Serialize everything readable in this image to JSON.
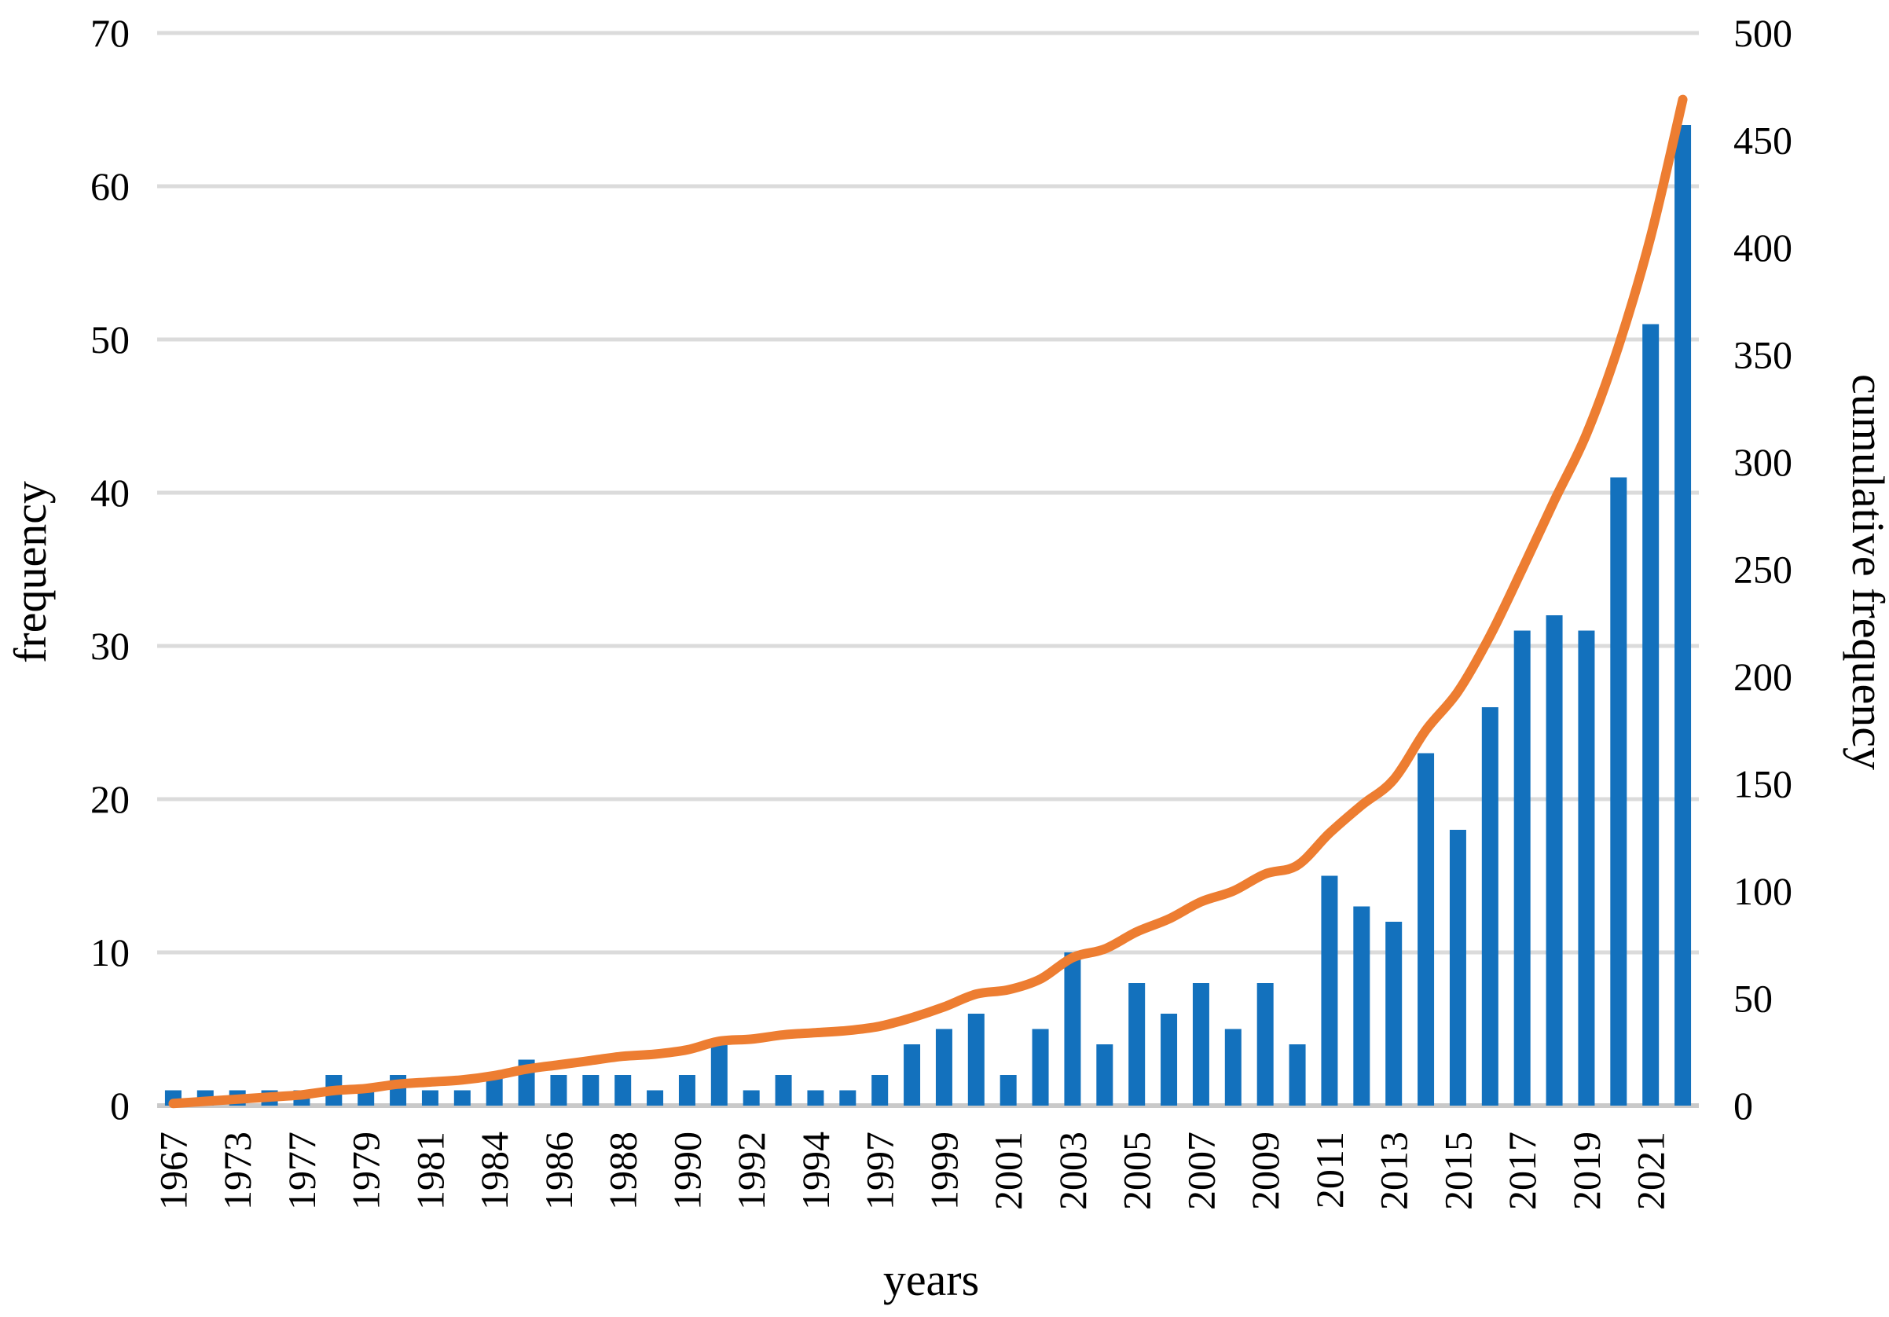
{
  "chart_data": {
    "type": "combo-bar-line",
    "title": "",
    "x_axis": {
      "title": "years",
      "tick_labels": [
        "1967",
        "1973",
        "1977",
        "1979",
        "1981",
        "1984",
        "1986",
        "1988",
        "1990",
        "1992",
        "1994",
        "1997",
        "1999",
        "2001",
        "2003",
        "2005",
        "2007",
        "2009",
        "2011",
        "2013",
        "2015",
        "2017",
        "2019",
        "2021"
      ],
      "tick_every_n_bars": 2,
      "total_bars": 48
    },
    "left_axis": {
      "title": "frequency",
      "min": 0,
      "max": 70,
      "ticks": [
        0,
        10,
        20,
        30,
        40,
        50,
        60,
        70
      ]
    },
    "right_axis": {
      "title": "cumulative frequency",
      "min": 0,
      "max": 500,
      "ticks": [
        0,
        50,
        100,
        150,
        200,
        250,
        300,
        350,
        400,
        450,
        500
      ]
    },
    "series": [
      {
        "name": "frequency",
        "type": "bar",
        "axis": "left",
        "color": "#1371BD",
        "values": [
          1,
          1,
          1,
          1,
          1,
          2,
          1,
          2,
          1,
          1,
          2,
          3,
          2,
          2,
          2,
          1,
          2,
          4,
          1,
          2,
          1,
          1,
          2,
          4,
          5,
          6,
          2,
          5,
          10,
          4,
          8,
          6,
          8,
          5,
          8,
          4,
          15,
          13,
          12,
          23,
          18,
          26,
          31,
          32,
          31,
          41,
          51,
          64
        ]
      },
      {
        "name": "cumulative frequency",
        "type": "line",
        "axis": "right",
        "color": "#ED7D31",
        "values": [
          1,
          2,
          3,
          4,
          5,
          7,
          8,
          10,
          11,
          12,
          14,
          17,
          19,
          21,
          23,
          24,
          26,
          30,
          31,
          33,
          34,
          35,
          37,
          41,
          46,
          52,
          54,
          59,
          69,
          73,
          81,
          87,
          95,
          100,
          108,
          112,
          127,
          140,
          152,
          175,
          193,
          219,
          250,
          282,
          313,
          354,
          405,
          469
        ]
      }
    ],
    "grid": "horizontal",
    "legend": "none",
    "colors": {
      "gridline": "#DBDBDB",
      "axis_line": "#C9C9C9",
      "text": "#000000",
      "background": "#FFFFFF"
    }
  }
}
